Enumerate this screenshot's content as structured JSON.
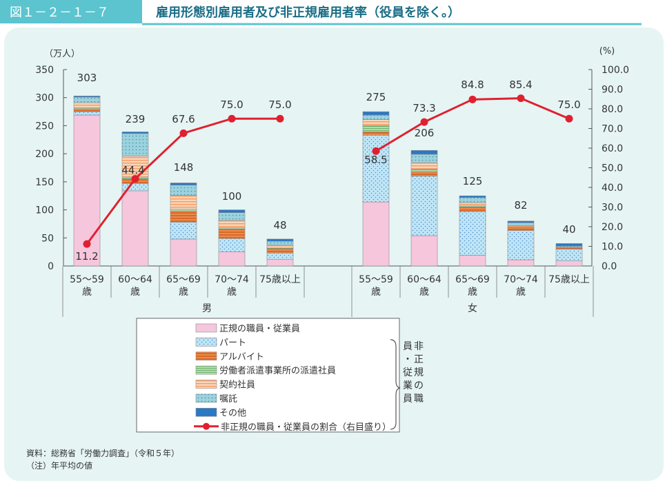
{
  "header": {
    "fig_label": "図１－２－１－７",
    "title": "雇用形態別雇用者及び非正規雇用者率（役員を除く。）"
  },
  "colors": {
    "header_teal": "#5bc4cf",
    "panel_bg": "#e6f4f4",
    "regular": "#f5c6dc",
    "part": "#bfe6f6",
    "arubaito": "#ea8c4c",
    "haken": "#b5dab0",
    "keiyaku": "#fad6bb",
    "shokutaku": "#9bd2de",
    "other": "#2b78c4",
    "rate_line": "#e0202e"
  },
  "legend": {
    "items": [
      {
        "label": "正規の職員・従業員",
        "key": "regular"
      },
      {
        "label": "パート",
        "key": "part"
      },
      {
        "label": "アルバイト",
        "key": "arubaito"
      },
      {
        "label": "労働者派遣事業所の派遣社員",
        "key": "haken"
      },
      {
        "label": "契約社員",
        "key": "keiyaku"
      },
      {
        "label": "嘱託",
        "key": "shokutaku"
      },
      {
        "label": "その他",
        "key": "other"
      }
    ],
    "line_label": "非正規の職員・従業員の割合（右目盛り）",
    "bracket_label": "非正規の職員・従業員"
  },
  "notes": {
    "source": "資料：総務省「労働力調査」（令和５年）",
    "note": "（注）年平均の値"
  },
  "chart_data": {
    "type": "bar",
    "y_left_unit": "（万人）",
    "y_right_unit": "(%)",
    "ylim_left": [
      0,
      350
    ],
    "ylim_right": [
      0,
      100
    ],
    "yticks_left": [
      "0",
      "50",
      "100",
      "150",
      "200",
      "250",
      "300",
      "350"
    ],
    "yticks_right": [
      "0.0",
      "10.0",
      "20.0",
      "30.0",
      "40.0",
      "50.0",
      "60.0",
      "70.0",
      "80.0",
      "90.0",
      "100.0"
    ],
    "groups": [
      {
        "label": "男",
        "categories": [
          "55～59歳",
          "60～64歳",
          "65～69歳",
          "70～74歳",
          "75歳以上"
        ]
      },
      {
        "label": "女",
        "categories": [
          "55～59歳",
          "60～64歳",
          "65～69歳",
          "70～74歳",
          "75歳以上"
        ]
      }
    ],
    "category_lines": [
      [
        "55～59",
        "歳"
      ],
      [
        "60～64",
        "歳"
      ],
      [
        "65～69",
        "歳"
      ],
      [
        "70～74",
        "歳"
      ],
      [
        "75歳以上",
        ""
      ],
      [
        "55～59",
        "歳"
      ],
      [
        "60～64",
        "歳"
      ],
      [
        "65～69",
        "歳"
      ],
      [
        "70～74",
        "歳"
      ],
      [
        "75歳以上",
        ""
      ]
    ],
    "totals": [
      "303",
      "239",
      "148",
      "100",
      "48",
      "275",
      "206",
      "125",
      "82",
      "40"
    ],
    "series": [
      {
        "name": "正規の職員・従業員",
        "key": "regular",
        "values": [
          269,
          134,
          48,
          25,
          12,
          114,
          54,
          19,
          11,
          9
        ]
      },
      {
        "name": "パート",
        "key": "part",
        "values": [
          6,
          13,
          30,
          24,
          11,
          119,
          106,
          78,
          52,
          21
        ]
      },
      {
        "name": "アルバイト",
        "key": "arubaito",
        "values": [
          5,
          8,
          20,
          17,
          8,
          6,
          8,
          8,
          5,
          2
        ]
      },
      {
        "name": "労働者派遣事業所の派遣社員",
        "key": "haken",
        "values": [
          2,
          4,
          3,
          2,
          1,
          11,
          4,
          2,
          1,
          0.5
        ]
      },
      {
        "name": "契約社員",
        "key": "keiyaku",
        "values": [
          9,
          37,
          25,
          13,
          5,
          11,
          12,
          6,
          3,
          1
        ]
      },
      {
        "name": "嘱託",
        "key": "shokutaku",
        "values": [
          10,
          40,
          18,
          14,
          7,
          8,
          15,
          9,
          5,
          2
        ]
      },
      {
        "name": "その他",
        "key": "other",
        "values": [
          2,
          3,
          4,
          5,
          4,
          6,
          7,
          3,
          3,
          4.5
        ]
      }
    ],
    "rate_line": {
      "name": "非正規の職員・従業員の割合（右目盛り）",
      "values": [
        11.2,
        44.4,
        67.6,
        75.0,
        75.0,
        58.5,
        73.3,
        84.8,
        85.4,
        75.0
      ],
      "labels": [
        "11.2",
        "44.4",
        "67.6",
        "75.0",
        "75.0",
        "58.5",
        "73.3",
        "84.8",
        "85.4",
        "75.0"
      ]
    },
    "grid": false,
    "legend_position": "bottom-center"
  }
}
